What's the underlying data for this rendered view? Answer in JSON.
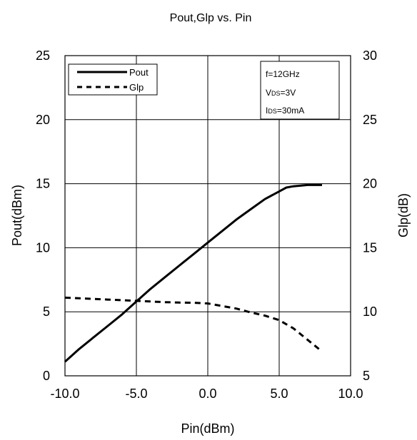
{
  "chart_data": {
    "type": "line",
    "title": "Pout,Glp vs. Pin",
    "xlabel": "Pin(dBm)",
    "ylabel": "Pout(dBm)",
    "y2label": "Glp(dB)",
    "xlim": [
      -10,
      10
    ],
    "ylim": [
      0,
      25
    ],
    "y2lim": [
      5,
      30
    ],
    "xticks": [
      -10,
      -5,
      0,
      5,
      10
    ],
    "xtick_labels": [
      "-10.0",
      "-5.0",
      "0.0",
      "5.0",
      "10.0"
    ],
    "yticks": [
      0,
      5,
      10,
      15,
      20,
      25
    ],
    "ytick_labels": [
      "0",
      "5",
      "10",
      "15",
      "20",
      "25"
    ],
    "y2ticks": [
      5,
      10,
      15,
      20,
      25,
      30
    ],
    "y2tick_labels": [
      "5",
      "10",
      "15",
      "20",
      "25",
      "30"
    ],
    "grid": true,
    "legend_position": "top-left",
    "series": [
      {
        "name": "Pout",
        "axis": "left",
        "style": "solid",
        "color": "#000000",
        "x": [
          -10,
          -9,
          -8,
          -7,
          -6,
          -5,
          -4,
          -3,
          -2,
          -1,
          0,
          1,
          2,
          3,
          4,
          5,
          5.5,
          6,
          7,
          8
        ],
        "y": [
          1.1,
          2.1,
          3.0,
          3.9,
          4.8,
          5.8,
          6.8,
          7.7,
          8.6,
          9.5,
          10.4,
          11.3,
          12.2,
          13.0,
          13.8,
          14.4,
          14.7,
          14.8,
          14.9,
          14.9
        ]
      },
      {
        "name": "Glp",
        "axis": "right",
        "style": "dashed",
        "color": "#000000",
        "x": [
          -10,
          -9,
          -8,
          -7,
          -6,
          -5,
          -4,
          -3,
          -2,
          -1,
          0,
          1,
          2,
          3,
          4,
          5,
          6,
          7,
          8
        ],
        "y": [
          11.1,
          11.05,
          11.0,
          10.95,
          10.9,
          10.85,
          10.8,
          10.75,
          10.72,
          10.7,
          10.65,
          10.45,
          10.25,
          9.95,
          9.7,
          9.35,
          8.7,
          7.8,
          6.9
        ]
      }
    ],
    "conditions": [
      {
        "main": "f=12GHz",
        "sub": "",
        "rest": ""
      },
      {
        "main": "V",
        "sub": "DS",
        "rest": "=3V"
      },
      {
        "main": "I",
        "sub": "DS",
        "rest": "=30mA"
      }
    ]
  }
}
